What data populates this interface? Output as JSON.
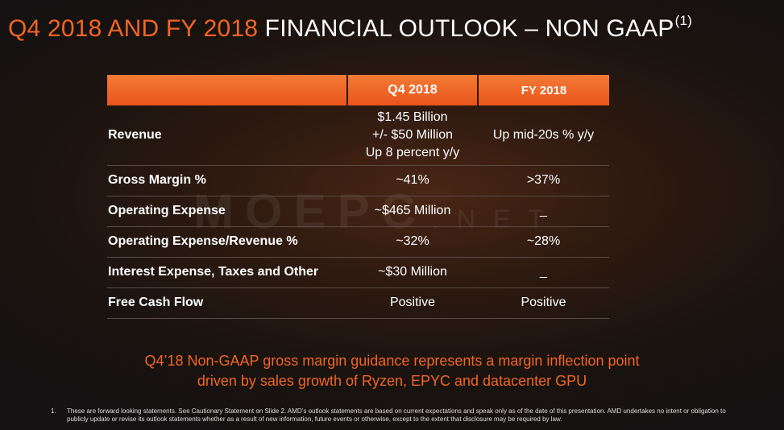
{
  "title": {
    "highlight": "Q4 2018 AND FY 2018",
    "main": "FINANCIAL OUTLOOK – NON GAAP",
    "superscript": "(1)"
  },
  "watermark": {
    "brand": "MOEPC",
    "suffix": ".NET"
  },
  "table": {
    "headers": [
      "",
      "Q4 2018",
      "FY 2018"
    ],
    "rows": [
      {
        "label": "Revenue",
        "q4": [
          "$1.45 Billion",
          "+/- $50 Million",
          "Up 8 percent y/y"
        ],
        "fy": "Up mid-20s % y/y"
      },
      {
        "label": "Gross Margin %",
        "q4": "~41%",
        "fy": ">37%"
      },
      {
        "label": "Operating Expense",
        "q4": "~$465 Million",
        "fy": "_"
      },
      {
        "label": "Operating Expense/Revenue %",
        "q4": "~32%",
        "fy": "~28%"
      },
      {
        "label": "Interest Expense, Taxes and Other",
        "q4": "~$30 Million",
        "fy": "_"
      },
      {
        "label": "Free Cash Flow",
        "q4": "Positive",
        "fy": "Positive"
      }
    ]
  },
  "commentary": {
    "line1": "Q4’18 Non-GAAP gross margin guidance represents a margin inflection point",
    "line2": "driven by sales growth of Ryzen, EPYC and datacenter GPU"
  },
  "footnote": {
    "number": "1.",
    "text": "These are forward looking statements.  See Cautionary Statement on Slide 2. AMD’s outlook statements are based on current expectations and speak only as of the date of this presentation. AMD undertakes no intent or obligation to publicly update or revise its outlook statements whether as a result of new information, future events or otherwise, except to the extent that disclosure may be required by law."
  },
  "colors": {
    "accent": "#f26522",
    "header_bar": "#e8551b",
    "background": "#1a1310"
  }
}
